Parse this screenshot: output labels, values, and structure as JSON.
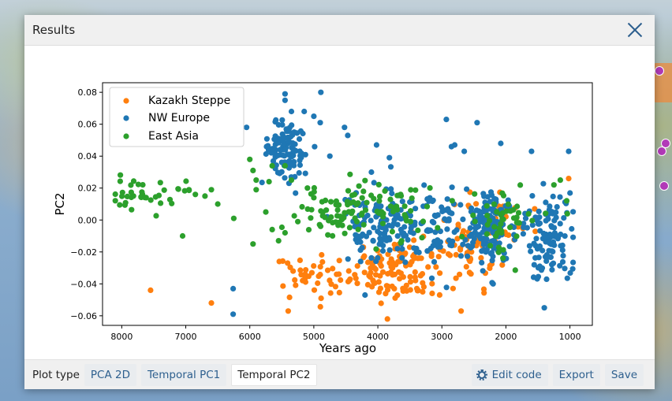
{
  "dialog": {
    "title": "Results"
  },
  "toolbar": {
    "plot_type_label": "Plot type",
    "tabs": [
      "PCA 2D",
      "Temporal PC1",
      "Temporal PC2"
    ],
    "active_tab": "Temporal PC2",
    "edit_code_label": "Edit code",
    "export_label": "Export",
    "save_label": "Save"
  },
  "chart_data": {
    "type": "scatter",
    "xlabel": "Years ago",
    "ylabel": "PC2",
    "xlim": [
      8300,
      650
    ],
    "ylim": [
      -0.066,
      0.086
    ],
    "x_reversed": true,
    "xticks": [
      8000,
      7000,
      6000,
      5000,
      4000,
      3000,
      2000,
      1000
    ],
    "yticks": [
      0.08,
      0.06,
      0.04,
      0.02,
      0.0,
      -0.02,
      -0.04,
      -0.06
    ],
    "ytick_labels": [
      "0.08",
      "0.06",
      "0.04",
      "0.02",
      "0.00",
      "−0.02",
      "−0.04",
      "−0.06"
    ],
    "legend_position": "top-left",
    "series": [
      {
        "name": "Kazakh Steppe",
        "color": "#ff7f0e",
        "clusters": [
          {
            "x": 5000,
            "y": -0.036,
            "sx": 330,
            "sy": 0.007,
            "n": 45
          },
          {
            "x": 3700,
            "y": -0.032,
            "sx": 350,
            "sy": 0.01,
            "n": 110
          },
          {
            "x": 2600,
            "y": -0.018,
            "sx": 250,
            "sy": 0.012,
            "n": 55
          },
          {
            "x": 2050,
            "y": 0.0,
            "sx": 250,
            "sy": 0.01,
            "n": 30
          }
        ],
        "points": [
          [
            7550,
            -0.044
          ],
          [
            6600,
            -0.052
          ],
          [
            5400,
            -0.057
          ],
          [
            3850,
            -0.062
          ],
          [
            2700,
            -0.057
          ],
          [
            1550,
            0.007
          ],
          [
            1020,
            0.026
          ],
          [
            4300,
            -0.005
          ],
          [
            3300,
            -0.045
          ]
        ]
      },
      {
        "name": "NW Europe",
        "color": "#1f77b4",
        "clusters": [
          {
            "x": 5450,
            "y": 0.044,
            "sx": 160,
            "sy": 0.008,
            "n": 110
          },
          {
            "x": 3950,
            "y": -0.006,
            "sx": 350,
            "sy": 0.012,
            "n": 120
          },
          {
            "x": 3100,
            "y": -0.002,
            "sx": 300,
            "sy": 0.01,
            "n": 70
          },
          {
            "x": 2250,
            "y": -0.005,
            "sx": 180,
            "sy": 0.012,
            "n": 160
          },
          {
            "x": 1300,
            "y": -0.01,
            "sx": 180,
            "sy": 0.014,
            "n": 110
          }
        ],
        "points": [
          [
            5450,
            0.079
          ],
          [
            5450,
            0.075
          ],
          [
            5350,
            0.068
          ],
          [
            5150,
            0.068
          ],
          [
            5000,
            0.065
          ],
          [
            4900,
            0.061
          ],
          [
            4520,
            0.058
          ],
          [
            4470,
            0.053
          ],
          [
            4020,
            0.047
          ],
          [
            3820,
            0.039
          ],
          [
            2930,
            0.063
          ],
          [
            2850,
            0.046
          ],
          [
            2800,
            0.047
          ],
          [
            2650,
            0.043
          ],
          [
            2450,
            0.061
          ],
          [
            2080,
            0.048
          ],
          [
            1600,
            0.043
          ],
          [
            1020,
            0.043
          ],
          [
            6050,
            0.058
          ],
          [
            6260,
            -0.043
          ],
          [
            6260,
            -0.059
          ],
          [
            1400,
            -0.055
          ],
          [
            4200,
            -0.047
          ],
          [
            2200,
            -0.04
          ],
          [
            4890,
            0.08
          ],
          [
            4100,
            0.03
          ],
          [
            4750,
            0.04
          ]
        ]
      },
      {
        "name": "East Asia",
        "color": "#2ca02c",
        "clusters": [
          {
            "x": 7600,
            "y": 0.016,
            "sx": 300,
            "sy": 0.006,
            "n": 38
          },
          {
            "x": 4700,
            "y": 0.003,
            "sx": 350,
            "sy": 0.008,
            "n": 55
          },
          {
            "x": 3850,
            "y": 0.008,
            "sx": 350,
            "sy": 0.01,
            "n": 50
          },
          {
            "x": 2000,
            "y": 0.0,
            "sx": 320,
            "sy": 0.01,
            "n": 50
          }
        ],
        "points": [
          [
            6950,
            0.019
          ],
          [
            6850,
            0.016
          ],
          [
            6700,
            0.015
          ],
          [
            6600,
            0.019
          ],
          [
            6500,
            0.01
          ],
          [
            7050,
            -0.01
          ],
          [
            6250,
            0.001
          ],
          [
            6000,
            0.038
          ],
          [
            5950,
            0.031
          ],
          [
            5900,
            0.025
          ],
          [
            5900,
            0.019
          ],
          [
            5950,
            -0.015
          ],
          [
            5700,
            0.024
          ],
          [
            5650,
            0.034
          ],
          [
            5450,
            0.034
          ],
          [
            5350,
            0.025
          ],
          [
            5750,
            0.005
          ],
          [
            5650,
            -0.006
          ],
          [
            5550,
            -0.013
          ],
          [
            5450,
            -0.008
          ],
          [
            5250,
            -0.001
          ],
          [
            5100,
            0.02
          ],
          [
            5000,
            0.014
          ],
          [
            1050,
            0.012
          ],
          [
            1150,
            0.025
          ],
          [
            1250,
            0.022
          ]
        ]
      }
    ]
  }
}
